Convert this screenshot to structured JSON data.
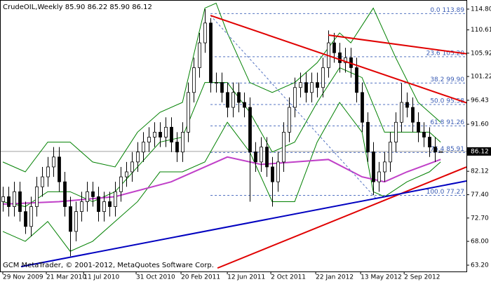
{
  "chart_data": {
    "type": "candlestick",
    "title": "CrudeOIL,Weekly 85.90 86.22 85.90 86.12",
    "footer": "GCM MetaTrader, © 2001-2012, MetaQuotes Software Corp.",
    "xlim": [
      -0.5,
      82.6
    ],
    "ylim": [
      61.93,
      116.21
    ],
    "xticks": [
      {
        "value": 0,
        "label": "29 Nov 2009"
      },
      {
        "value": 7.75,
        "label": "21 Mar 2010"
      },
      {
        "value": 14.4,
        "label": "11 Jul 2010"
      },
      {
        "value": 23.75,
        "label": "31 Oct 2010"
      },
      {
        "value": 31.75,
        "label": "20 Feb 2011"
      },
      {
        "value": 40,
        "label": "12 Jun 2011"
      },
      {
        "value": 47.75,
        "label": "2 Oct 2011"
      },
      {
        "value": 55.75,
        "label": "22 Jan 2012"
      },
      {
        "value": 63.75,
        "label": "13 May 2012"
      },
      {
        "value": 71.5,
        "label": "2 Sep 2012"
      }
    ],
    "yticks": [
      {
        "value": 114.8,
        "label": "114.80"
      },
      {
        "value": 110.61,
        "label": "110.61"
      },
      {
        "value": 105.92,
        "label": "105.92"
      },
      {
        "value": 101.22,
        "label": "101.22"
      },
      {
        "value": 96.43,
        "label": "96.43"
      },
      {
        "value": 91.6,
        "label": "91.60"
      },
      {
        "value": 82.12,
        "label": "82.12"
      },
      {
        "value": 77.4,
        "label": "77.40"
      },
      {
        "value": 72.7,
        "label": "72.70"
      },
      {
        "value": 68.0,
        "label": "68.00"
      },
      {
        "value": 63.2,
        "label": "63.20"
      }
    ],
    "current_price": {
      "value": 86.12,
      "label": "86.12"
    },
    "up_color": "#ffffff",
    "down_color": "#000000",
    "open": [
      76,
      77,
      75,
      78,
      74,
      71,
      75,
      79,
      81,
      83,
      85,
      80,
      75,
      70,
      74,
      76,
      78,
      77,
      74,
      76,
      75,
      78,
      81,
      82,
      84,
      86,
      88,
      89,
      90,
      89,
      91,
      88,
      86,
      90,
      98,
      103,
      108,
      112,
      100,
      100,
      98,
      95,
      98,
      96,
      95,
      86,
      84,
      87,
      83,
      80,
      84,
      90,
      95,
      99,
      100,
      98,
      100,
      99,
      103,
      108,
      106,
      104,
      105,
      103,
      98,
      92,
      86,
      80,
      82,
      84,
      88,
      92,
      96,
      95,
      92,
      90,
      89,
      87,
      85.9
    ],
    "high": [
      79,
      79,
      80,
      80,
      76,
      77,
      81,
      83,
      85,
      87,
      87,
      82,
      77,
      76,
      78,
      80,
      80,
      79,
      78,
      78,
      80,
      83,
      84,
      86,
      88,
      90,
      91,
      92,
      92,
      93,
      93,
      90,
      92,
      100,
      105,
      110,
      114.8,
      113,
      102,
      102,
      100,
      100,
      100,
      98,
      97,
      88,
      89,
      89,
      85,
      86,
      92,
      97,
      101,
      102,
      102,
      102,
      102,
      105,
      110.5,
      110,
      108,
      107,
      107,
      105,
      100,
      94,
      88,
      84,
      86,
      90,
      94,
      99.9,
      98,
      97,
      94,
      92,
      91,
      89,
      86.22
    ],
    "low": [
      74,
      73,
      73,
      72,
      69.5,
      69,
      73,
      77,
      79,
      81,
      78,
      73,
      65,
      68,
      72,
      74,
      75,
      72,
      72,
      73,
      73,
      76,
      79,
      80,
      82,
      84,
      86,
      87,
      87,
      87,
      86,
      84,
      84,
      88,
      96,
      101,
      106,
      98,
      98,
      96,
      93,
      93,
      94,
      93,
      76,
      82,
      82,
      81,
      75,
      78,
      82,
      88,
      93,
      97,
      96,
      96,
      97,
      97,
      101,
      104,
      102,
      102,
      101,
      96,
      90,
      84,
      77.3,
      78,
      80,
      82,
      86,
      90,
      93,
      90,
      88,
      87,
      85,
      84,
      85.9
    ],
    "close": [
      77,
      75,
      78,
      74,
      71,
      75,
      79,
      81,
      83,
      85,
      80,
      75,
      70,
      74,
      76,
      78,
      77,
      74,
      76,
      75,
      78,
      81,
      82,
      84,
      86,
      88,
      89,
      90,
      89,
      91,
      88,
      86,
      90,
      98,
      103,
      108,
      112,
      100,
      100,
      98,
      95,
      98,
      96,
      95,
      86,
      84,
      87,
      83,
      80,
      84,
      90,
      95,
      99,
      100,
      98,
      100,
      99,
      103,
      108,
      106,
      104,
      105,
      103,
      98,
      92,
      86,
      80,
      82,
      84,
      88,
      92,
      96,
      95,
      92,
      90,
      89,
      87,
      86,
      86.12
    ],
    "bands": [
      {
        "color": "#008000",
        "x": [
          0,
          4,
          8,
          12,
          16,
          20,
          24,
          28,
          32,
          36,
          38,
          40,
          44,
          48,
          52,
          56,
          60,
          62,
          66,
          70,
          74,
          78
        ],
        "values": [
          84,
          82,
          88,
          88,
          84,
          83,
          90,
          94,
          96,
          115,
          116,
          110,
          100,
          98,
          100,
          104,
          110,
          108,
          115,
          105,
          96,
          92
        ]
      },
      {
        "color": "#008000",
        "x": [
          0,
          4,
          8,
          12,
          16,
          20,
          24,
          28,
          32,
          36,
          40,
          44,
          48,
          52,
          56,
          60,
          64,
          68,
          72,
          76,
          78
        ],
        "values": [
          76,
          75,
          78,
          78,
          76,
          78,
          83,
          88,
          89,
          100,
          100,
          94,
          86,
          88,
          96,
          103,
          101,
          90,
          90,
          90,
          88
        ]
      },
      {
        "color": "#008000",
        "x": [
          0,
          4,
          8,
          12,
          16,
          20,
          24,
          28,
          32,
          36,
          40,
          44,
          48,
          52,
          56,
          60,
          64,
          66,
          68,
          72,
          76,
          78
        ],
        "values": [
          70,
          68,
          72,
          66,
          68,
          72,
          76,
          82,
          82,
          84,
          92,
          86,
          76,
          76,
          88,
          96,
          90,
          78,
          77,
          80,
          82,
          84
        ]
      }
    ],
    "moving_average": {
      "color": "#c040c8",
      "x": [
        0,
        10,
        20,
        30,
        40,
        46,
        52,
        58,
        64,
        68,
        72,
        78
      ],
      "values": [
        75.5,
        76,
        77,
        80,
        85,
        83.5,
        84,
        84.5,
        81,
        80,
        82,
        84.5
      ]
    },
    "trendlines": [
      {
        "color": "#e00000",
        "x": [
          37,
          82.6
        ],
        "values": [
          113.52,
          95.92
        ]
      },
      {
        "color": "#e00000",
        "x": [
          58,
          82.6
        ],
        "values": [
          109.56,
          105.8
        ]
      },
      {
        "color": "#e00000",
        "x": [
          38.25,
          82.6
        ],
        "values": [
          62.62,
          82.98
        ]
      },
      {
        "color": "#0000c0",
        "x": [
          3.25,
          82.6
        ],
        "values": [
          62.9,
          80.16
        ]
      }
    ],
    "fib_line": {
      "color": "#5070c0",
      "x": [
        37,
        66.4
      ],
      "values": [
        113.52,
        76.76
      ]
    },
    "fib_levels": [
      {
        "value": 113.89,
        "label": "0.0 113.89"
      },
      {
        "value": 105.2,
        "label": "23.6 105.20"
      },
      {
        "value": 99.9,
        "label": "38.2 99.90"
      },
      {
        "value": 95.58,
        "label": "50.0 95.58"
      },
      {
        "value": 91.26,
        "label": "61.8 91.26"
      },
      {
        "value": 85.91,
        "label": "76.4 85.91"
      },
      {
        "value": 77.27,
        "label": "100.0 77.27"
      }
    ]
  }
}
